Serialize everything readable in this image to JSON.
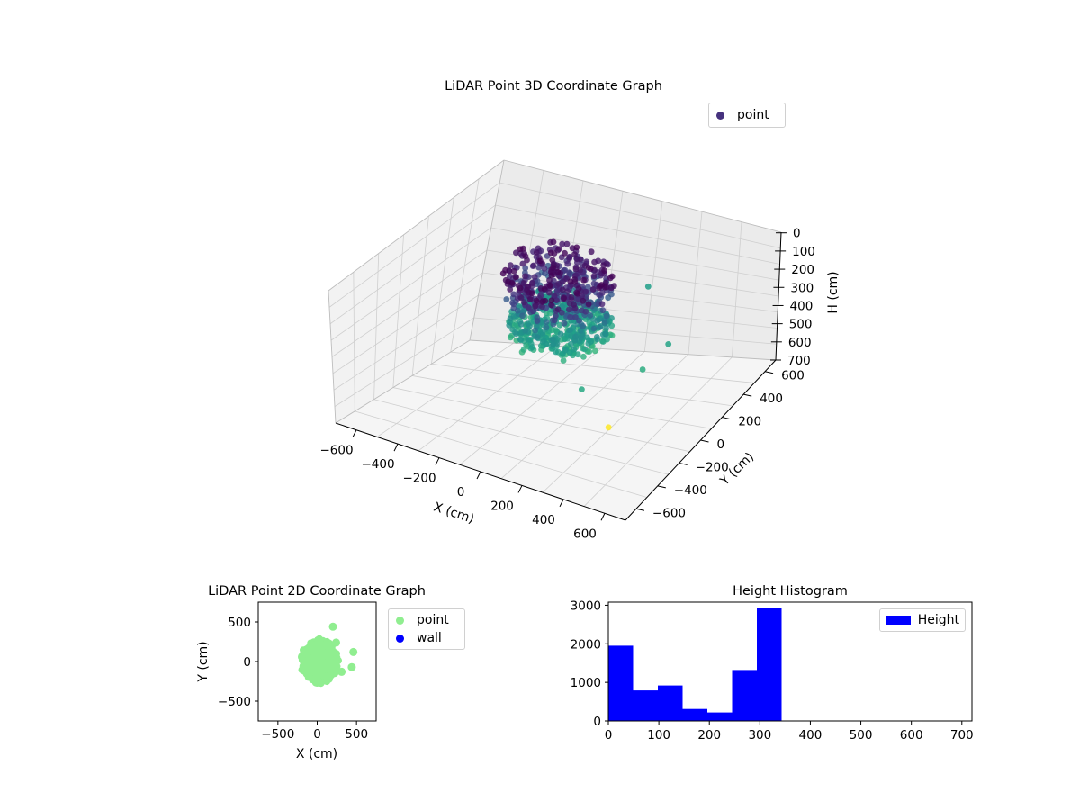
{
  "chart_data": [
    {
      "type": "scatter",
      "projection": "3d",
      "title": "LiDAR Point 3D Coordinate Graph",
      "xlabel": "X (cm)",
      "ylabel": "Y (cm)",
      "zlabel": "H (cm)",
      "xlim": [
        -700,
        700
      ],
      "ylim": [
        -700,
        700
      ],
      "zlim": [
        700,
        0
      ],
      "z_inverted": true,
      "xticks": [
        "−600",
        "−400",
        "−200",
        "0",
        "200",
        "400",
        "600"
      ],
      "yticks": [
        "−600",
        "−400",
        "−200",
        "0",
        "200",
        "400",
        "600"
      ],
      "zticks": [
        "0",
        "100",
        "200",
        "300",
        "400",
        "500",
        "600",
        "700"
      ],
      "colormap": "viridis",
      "legend": {
        "label": "point",
        "color": "#46327e",
        "placement": "top-right"
      },
      "series": [
        {
          "name": "point",
          "clusters": [
            {
              "x_center": 0,
              "y_center": 0,
              "x_spread": 250,
              "y_spread": 250,
              "h_min": 0,
              "h_max": 60,
              "count": 1950
            },
            {
              "x_center": 0,
              "y_center": 0,
              "x_spread": 240,
              "y_spread": 240,
              "h_min": 60,
              "h_max": 150,
              "count": 1700
            },
            {
              "x_center": 0,
              "y_center": 0,
              "x_spread": 230,
              "y_spread": 230,
              "h_min": 150,
              "h_max": 250,
              "count": 550
            },
            {
              "x_center": 0,
              "y_center": 0,
              "x_spread": 230,
              "y_spread": 230,
              "h_min": 250,
              "h_max": 340,
              "count": 4250
            }
          ],
          "outliers": [
            {
              "x": 470,
              "y": 120,
              "h": 300
            },
            {
              "x": 450,
              "y": -80,
              "h": 320
            },
            {
              "x": 200,
              "y": 440,
              "h": 290
            },
            {
              "x": 400,
              "y": -300,
              "h": 520
            },
            {
              "x": 300,
              "y": -360,
              "h": 310
            }
          ]
        }
      ]
    },
    {
      "type": "scatter",
      "title": "LiDAR Point 2D Coordinate Graph",
      "xlabel": "X (cm)",
      "ylabel": "Y (cm)",
      "xlim": [
        -750,
        750
      ],
      "ylim": [
        -750,
        750
      ],
      "xticks": [
        -500,
        0,
        500
      ],
      "yticks": [
        -500,
        0,
        500
      ],
      "legend": {
        "placement": "outside-right"
      },
      "series": [
        {
          "name": "point",
          "color": "#90ee90",
          "blob": {
            "x_center": 30,
            "y_center": 0,
            "x_radius": 250,
            "y_radius": 290
          },
          "outliers": [
            {
              "x": 200,
              "y": 440
            },
            {
              "x": 460,
              "y": 120
            },
            {
              "x": 440,
              "y": -70
            },
            {
              "x": 310,
              "y": -130
            },
            {
              "x": 240,
              "y": 240
            }
          ]
        },
        {
          "name": "wall",
          "color": "#0000ff",
          "points": []
        }
      ]
    },
    {
      "type": "bar",
      "subtype": "histogram",
      "title": "Height Histogram",
      "xlim": [
        0,
        720
      ],
      "ylim": [
        0,
        3080
      ],
      "xticks": [
        0,
        100,
        200,
        300,
        400,
        500,
        600,
        700
      ],
      "yticks": [
        0,
        1000,
        2000,
        3000
      ],
      "legend": {
        "label": "Height",
        "color": "#0000ff",
        "placement": "top-right"
      },
      "bin_edges": [
        0,
        49,
        98,
        147,
        196,
        245,
        294,
        343
      ],
      "values": [
        1950,
        790,
        920,
        310,
        220,
        1320,
        2930
      ]
    }
  ]
}
